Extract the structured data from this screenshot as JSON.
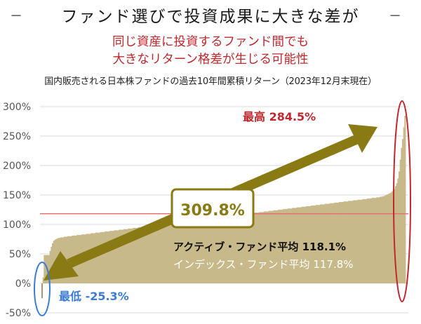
{
  "header": {
    "title": "ファンド選びで投資成果に大きな差が",
    "dash_left": "－",
    "dash_right": "－",
    "subtitle_line1": "同じ資産に投資するファンド間でも",
    "subtitle_line2": "大きなリターン格差が生じる可能性",
    "caption": "国内販売される日本株ファンドの過去10年間累積リターン（2023年12月末現在）"
  },
  "annotations": {
    "max_label": "最高 284.5%",
    "min_label": "最低 -25.3%",
    "spread_label": "309.8%",
    "active_label": "アクティブ・ファンド平均 118.1%",
    "index_label": "インデックス・ファンド平均 117.8%"
  },
  "colors": {
    "bar": "#c8b98a",
    "bar_negative": "#a89a6a",
    "arrow": "#8a7a14",
    "avg_line": "#e57373",
    "max_color": "#c0282e",
    "min_color": "#3a7bd5",
    "active_text": "#111111",
    "index_text": "#ffffff"
  },
  "chart_data": {
    "type": "bar",
    "title": "",
    "xlabel": "",
    "ylabel": "",
    "ylim": [
      -50,
      300
    ],
    "y_ticks": [
      300,
      250,
      200,
      150,
      100,
      50,
      0,
      -50
    ],
    "y_tick_labels": [
      "300%",
      "250%",
      "200%",
      "150%",
      "100%",
      "50%",
      "0%",
      "-50%"
    ],
    "grid": true,
    "reference_line": 118.1,
    "series": [
      {
        "values": [
          -25.3,
          10,
          48,
          48,
          48,
          48,
          48,
          55,
          62,
          68,
          72,
          74,
          75,
          76,
          77,
          77,
          78,
          78,
          78,
          79,
          79,
          79,
          80,
          80,
          80,
          80,
          81,
          81,
          81,
          81,
          82,
          82,
          82,
          82,
          83,
          83,
          83,
          83,
          84,
          84,
          84,
          84,
          85,
          85,
          85,
          85,
          86,
          86,
          86,
          86,
          87,
          87,
          87,
          87,
          88,
          88,
          88,
          88,
          89,
          89,
          89,
          89,
          90,
          90,
          90,
          90,
          91,
          91,
          91,
          91,
          92,
          92,
          92,
          92,
          93,
          93,
          93,
          93,
          94,
          94,
          94,
          94,
          95,
          95,
          95,
          95,
          96,
          96,
          96,
          96,
          97,
          97,
          97,
          97,
          98,
          98,
          98,
          98,
          99,
          99,
          99,
          99,
          100,
          100,
          100,
          100,
          101,
          101,
          101,
          101,
          102,
          102,
          102,
          102,
          103,
          103,
          103,
          103,
          104,
          104,
          104,
          104,
          105,
          105,
          105,
          105,
          106,
          106,
          106,
          106,
          107,
          107,
          107,
          107,
          108,
          108,
          108,
          108,
          109,
          109,
          109,
          109,
          110,
          110,
          110,
          110,
          111,
          111,
          111,
          111,
          112,
          112,
          112,
          112,
          113,
          113,
          113,
          113,
          114,
          114,
          114,
          114,
          115,
          115,
          115,
          115,
          116,
          116,
          116,
          116,
          117,
          117,
          117,
          117,
          118,
          118,
          118,
          118,
          119,
          119,
          119,
          119,
          120,
          120,
          120,
          120,
          121,
          121,
          121,
          121,
          122,
          122,
          122,
          122,
          123,
          123,
          123,
          123,
          124,
          124,
          124,
          124,
          125,
          125,
          125,
          125,
          126,
          126,
          126,
          126,
          127,
          127,
          127,
          127,
          128,
          128,
          128,
          128,
          129,
          129,
          129,
          129,
          130,
          130,
          130,
          130,
          131,
          131,
          131,
          131,
          132,
          132,
          132,
          132,
          133,
          133,
          133,
          133,
          134,
          134,
          134,
          134,
          135,
          135,
          135,
          135,
          136,
          136,
          136,
          136,
          137,
          137,
          137,
          137,
          138,
          138,
          138,
          138,
          139,
          139,
          139,
          139,
          140,
          140,
          140,
          140,
          141,
          141,
          141,
          141,
          142,
          142,
          142,
          142,
          143,
          143,
          143,
          143,
          144,
          144,
          144,
          144,
          145,
          145,
          145,
          145,
          146,
          146,
          146,
          147,
          147,
          148,
          148,
          149,
          150,
          151,
          152,
          153,
          154,
          156,
          158,
          160,
          165,
          170,
          178,
          190,
          210,
          230,
          245,
          265,
          284.5
        ]
      }
    ]
  }
}
